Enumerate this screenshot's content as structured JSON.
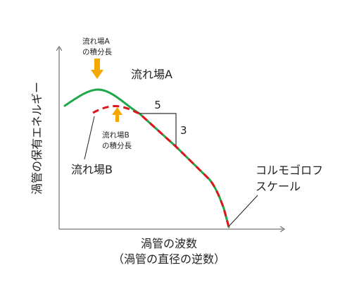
{
  "chart_data": {
    "type": "line",
    "x_scale": "log",
    "y_scale": "log",
    "xlabel": "渦管の波数",
    "xlabel_sub": "（渦管の直径の逆数）",
    "ylabel": "渦管の保有エネルギー",
    "series": [
      {
        "name": "流れ場A",
        "color": "#1fa84a",
        "style": "solid"
      },
      {
        "name": "流れ場B",
        "color": "#e0141c",
        "style": "dashed"
      }
    ],
    "annotations": {
      "peak_a": "流れ場A\nの積分長",
      "peak_b": "流れ場B\nの積分長",
      "slope_run": "5",
      "slope_rise": "3",
      "kolmogorov": "コルモゴロフ\nスケール"
    },
    "arrow_color": "#f5a800"
  }
}
